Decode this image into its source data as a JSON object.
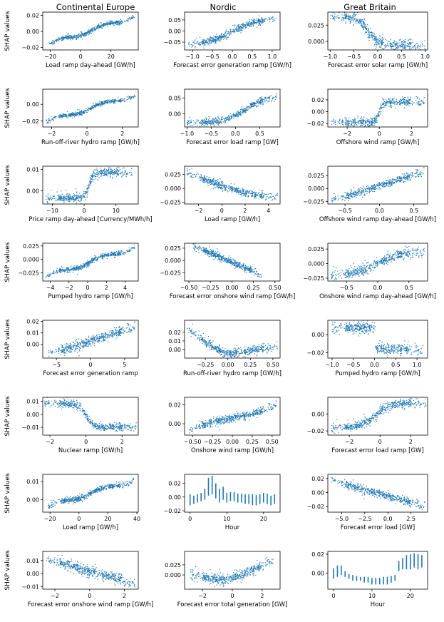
{
  "column_titles": [
    "Continental Europe",
    "Nordic",
    "Great Britain"
  ],
  "y_label": "SHAP values",
  "point_color": "#1f77b4",
  "chart_data": [
    {
      "type": "scatter",
      "row": 0,
      "col": 0,
      "xlabel": "Load ramp day-ahead [GW/h]",
      "xlim": [
        -25,
        38
      ],
      "ylim": [
        -0.023,
        0.024
      ],
      "xticks": [
        -20,
        0,
        20
      ],
      "yticks": [
        -0.02,
        0.0,
        0.02
      ],
      "ytick_labels": [
        "−0.02",
        "0.00",
        "0.02"
      ],
      "trend": {
        "kind": "stairs",
        "x0": -21,
        "x1": 36,
        "y0": -0.016,
        "y1": 0.019
      },
      "noise": 0.0015
    },
    {
      "type": "scatter",
      "row": 0,
      "col": 1,
      "xlabel": "Forecast error generation ramp [GW/h]",
      "xlim": [
        -1.2,
        1.2
      ],
      "ylim": [
        -0.085,
        0.085
      ],
      "xticks": [
        -1.0,
        -0.5,
        0.0,
        0.5,
        1.0
      ],
      "xtick_labels": [
        "−1.0",
        "−0.5",
        "0.0",
        "0.5",
        "1.0"
      ],
      "yticks": [
        -0.05,
        0.0,
        0.05
      ],
      "ytick_labels": [
        "−0.05",
        "0.00",
        "0.05"
      ],
      "trend": {
        "kind": "sigmoid",
        "x0": -1.1,
        "x1": 1.1,
        "y0": -0.065,
        "y1": 0.06,
        "center": 0.0,
        "width": 0.35
      },
      "noise": 0.009
    },
    {
      "type": "scatter",
      "row": 0,
      "col": 2,
      "xlabel": "Forecast error solar ramp [GW/h]",
      "xlim": [
        -1.05,
        1.05
      ],
      "ylim": [
        -0.013,
        0.045
      ],
      "xticks": [
        -1.0,
        -0.5,
        0.0,
        0.5,
        1.0
      ],
      "xtick_labels": [
        "−1.0",
        "−0.5",
        "0.0",
        "0.5",
        "1.0"
      ],
      "yticks": [
        0.0,
        0.025
      ],
      "ytick_labels": [
        "0.000",
        "0.025"
      ],
      "trend": {
        "kind": "sigmoid",
        "x0": -1.0,
        "x1": 1.0,
        "y0": 0.038,
        "y1": -0.007,
        "center": -0.2,
        "width": 0.12
      },
      "noise": 0.005
    },
    {
      "type": "scatter",
      "row": 1,
      "col": 0,
      "xlabel": "Run-off-river hydro ramp [GW/h]",
      "xlim": [
        -2.5,
        2.9
      ],
      "ylim": [
        -0.027,
        0.018
      ],
      "xticks": [
        -2,
        0,
        2
      ],
      "xtick_labels": [
        "−2",
        "0",
        "2"
      ],
      "yticks": [
        -0.02,
        0.0
      ],
      "ytick_labels": [
        "−0.02",
        "0.00"
      ],
      "trend": {
        "kind": "stairs",
        "x0": -2.3,
        "x1": 2.8,
        "y0": -0.021,
        "y1": 0.012
      },
      "noise": 0.0014
    },
    {
      "type": "scatter",
      "row": 1,
      "col": 1,
      "xlabel": "Forecast error load ramp [GW]",
      "xlim": [
        -1.05,
        0.92
      ],
      "ylim": [
        -0.042,
        0.078
      ],
      "xticks": [
        -1.0,
        -0.5,
        0.0,
        0.5
      ],
      "xtick_labels": [
        "−1.0",
        "−0.5",
        "0.0",
        "0.5"
      ],
      "yticks": [
        0.0,
        0.05
      ],
      "ytick_labels": [
        "0.00",
        "0.05"
      ],
      "trend": {
        "kind": "sigmoid",
        "x0": -1.0,
        "x1": 0.85,
        "y0": -0.03,
        "y1": 0.055,
        "center": 0.2,
        "width": 0.22
      },
      "noise": 0.006
    },
    {
      "type": "scatter",
      "row": 1,
      "col": 2,
      "xlabel": "Offshore wind ramp [GW/h]",
      "xlim": [
        -3.2,
        3.0
      ],
      "ylim": [
        -0.026,
        0.038
      ],
      "xticks": [
        -2,
        0,
        2
      ],
      "xtick_labels": [
        "−2",
        "0",
        "2"
      ],
      "yticks": [
        -0.02,
        0.0,
        0.02
      ],
      "ytick_labels": [
        "−0.02",
        "0.00",
        "0.02"
      ],
      "trend": {
        "kind": "sigmoid",
        "x0": -3.0,
        "x1": 2.8,
        "y0": -0.018,
        "y1": 0.016,
        "center": 0.0,
        "width": 0.12
      },
      "noise": 0.004
    },
    {
      "type": "scatter",
      "row": 2,
      "col": 0,
      "xlabel": "Price ramp day-ahead [Currency/MWh/h]",
      "xlim": [
        -13,
        17
      ],
      "ylim": [
        -0.0062,
        0.0115
      ],
      "xticks": [
        -10,
        0,
        10
      ],
      "xtick_labels": [
        "−10",
        "0",
        "10"
      ],
      "yticks": [
        0.0,
        0.01
      ],
      "ytick_labels": [
        "0.00",
        "0.01"
      ],
      "trend": {
        "kind": "sigmoid",
        "x0": -12,
        "x1": 15,
        "y0": -0.0035,
        "y1": 0.0085,
        "center": 1.5,
        "width": 0.7
      },
      "noise": 0.0012
    },
    {
      "type": "scatter",
      "row": 2,
      "col": 1,
      "xlabel": "Load ramp [GW/h]",
      "xlim": [
        -3.2,
        5.0
      ],
      "ylim": [
        -0.028,
        0.04
      ],
      "xticks": [
        -2,
        0,
        2,
        4
      ],
      "xtick_labels": [
        "−2",
        "0",
        "2",
        "4"
      ],
      "yticks": [
        -0.025,
        0.0,
        0.025
      ],
      "ytick_labels": [
        "−0.025",
        "0.000",
        "0.025"
      ],
      "trend": {
        "kind": "decay",
        "x0": -3.0,
        "x1": 4.8,
        "y0": 0.03,
        "y1": -0.018
      },
      "noise": 0.004
    },
    {
      "type": "scatter",
      "row": 2,
      "col": 2,
      "xlabel": "Offshore wind ramp day-ahead [GW/h]",
      "xlim": [
        -0.75,
        0.7
      ],
      "ylim": [
        -0.03,
        0.043
      ],
      "xticks": [
        -0.5,
        0.0,
        0.5
      ],
      "xtick_labels": [
        "−0.5",
        "0.0",
        "0.5"
      ],
      "yticks": [
        -0.025,
        0.0,
        0.025
      ],
      "ytick_labels": [
        "−0.025",
        "0.000",
        "0.025"
      ],
      "trend": {
        "kind": "linear",
        "x0": -0.7,
        "x1": 0.65,
        "y0": -0.024,
        "y1": 0.032
      },
      "noise": 0.004
    },
    {
      "type": "scatter",
      "row": 3,
      "col": 0,
      "xlabel": "Pumped hydro ramp [GW/h]",
      "xlim": [
        -4.8,
        5.4
      ],
      "ylim": [
        -0.04,
        0.03
      ],
      "xticks": [
        -4,
        -2,
        0,
        2,
        4
      ],
      "xtick_labels": [
        "−4",
        "−2",
        "0",
        "2",
        "4"
      ],
      "yticks": [
        -0.025,
        0.0,
        0.025
      ],
      "ytick_labels": [
        "−0.025",
        "0.000",
        "0.025"
      ],
      "trend": {
        "kind": "stairs",
        "x0": -4.5,
        "x1": 5.0,
        "y0": -0.033,
        "y1": 0.023
      },
      "noise": 0.0025
    },
    {
      "type": "scatter",
      "row": 3,
      "col": 1,
      "xlabel": "Forecast error onshore wind ramp [GW/h]",
      "xlim": [
        -0.55,
        0.56
      ],
      "ylim": [
        -0.042,
        0.035
      ],
      "xticks": [
        -0.5,
        -0.25,
        0.0,
        0.25,
        0.5
      ],
      "xtick_labels": [
        "−0.50",
        "−0.25",
        "0.00",
        "0.25",
        "0.50"
      ],
      "yticks": [
        -0.025,
        0.0,
        0.025
      ],
      "ytick_labels": [
        "−0.025",
        "0.000",
        "0.025"
      ],
      "trend": {
        "kind": "linear",
        "x0": -0.45,
        "x1": 0.35,
        "y0": 0.03,
        "y1": -0.03
      },
      "noise": 0.004
    },
    {
      "type": "scatter",
      "row": 3,
      "col": 2,
      "xlabel": "Onshore wind ramp day-ahead [GW/h]",
      "xlim": [
        -0.8,
        0.8
      ],
      "ylim": [
        -0.03,
        0.035
      ],
      "xticks": [
        -0.5,
        0.0,
        0.5
      ],
      "xtick_labels": [
        "−0.5",
        "0.0",
        "0.5"
      ],
      "yticks": [
        -0.025,
        0.0,
        0.025
      ],
      "ytick_labels": [
        "−0.025",
        "0.000",
        "0.025"
      ],
      "trend": {
        "kind": "sigmoid",
        "x0": -0.75,
        "x1": 0.75,
        "y0": -0.022,
        "y1": 0.022,
        "center": 0.0,
        "width": 0.22
      },
      "noise": 0.005
    },
    {
      "type": "scatter",
      "row": 4,
      "col": 0,
      "xlabel": "Forecast error generation ramp",
      "xlim": [
        -7,
        7
      ],
      "ylim": [
        -0.012,
        0.021
      ],
      "xticks": [
        -5,
        0,
        5
      ],
      "xtick_labels": [
        "−5",
        "0",
        "5"
      ],
      "yticks": [
        0.0,
        0.01,
        0.02
      ],
      "ytick_labels": [
        "0.00",
        "0.01",
        "0.02"
      ],
      "trend": {
        "kind": "linear",
        "x0": -6.2,
        "x1": 6.5,
        "y0": -0.0085,
        "y1": 0.015
      },
      "noise": 0.0022
    },
    {
      "type": "scatter",
      "row": 4,
      "col": 1,
      "xlabel": "Run-off-river hydro ramp [GW/h]",
      "xlim": [
        -0.48,
        0.58
      ],
      "ylim": [
        -0.01,
        0.034
      ],
      "xticks": [
        -0.25,
        0.0,
        0.25,
        0.5
      ],
      "xtick_labels": [
        "−0.25",
        "0.00",
        "0.25",
        "0.50"
      ],
      "yticks": [
        0.0,
        0.01,
        0.02
      ],
      "ytick_labels": [
        "0.00",
        "0.01",
        "0.02"
      ],
      "trend": {
        "kind": "vshape",
        "x0": -0.45,
        "x1": 0.55,
        "y0": 0.026,
        "y1": 0.004,
        "xmin": 0.0,
        "ymin": -0.005
      },
      "noise": 0.003
    },
    {
      "type": "scatter",
      "row": 4,
      "col": 2,
      "xlabel": "Pumped hydro ramp [GW/h]",
      "xlim": [
        -1.1,
        1.25
      ],
      "ylim": [
        -0.026,
        0.016
      ],
      "xticks": [
        -1.0,
        -0.5,
        0.0,
        0.5,
        1.0
      ],
      "xtick_labels": [
        "−1.0",
        "−0.5",
        "0.0",
        "0.5",
        "1.0"
      ],
      "yticks": [
        -0.02,
        0.0
      ],
      "ytick_labels": [
        "−0.02",
        "0.00"
      ],
      "trend": {
        "kind": "step",
        "x0": -1.0,
        "x1": 1.15,
        "y0": 0.008,
        "y1": -0.016,
        "center": 0.02
      },
      "noise": 0.0035
    },
    {
      "type": "scatter",
      "row": 5,
      "col": 0,
      "xlabel": "Nuclear ramp [GW/h]",
      "xlim": [
        -2.4,
        2.9
      ],
      "ylim": [
        -0.016,
        0.013
      ],
      "xticks": [
        -2,
        0,
        2
      ],
      "xtick_labels": [
        "−2",
        "0",
        "2"
      ],
      "yticks": [
        -0.01,
        0.0,
        0.01
      ],
      "ytick_labels": [
        "−0.01",
        "0.00",
        "0.01"
      ],
      "trend": {
        "kind": "sigmoid",
        "x0": -2.3,
        "x1": 2.8,
        "y0": 0.008,
        "y1": -0.01,
        "center": 0.0,
        "width": 0.18
      },
      "noise": 0.0016
    },
    {
      "type": "scatter",
      "row": 5,
      "col": 1,
      "xlabel": "Onshore wind ramp [GW/h]",
      "xlim": [
        -0.6,
        0.6
      ],
      "ylim": [
        -0.012,
        0.028
      ],
      "xticks": [
        -0.5,
        -0.25,
        0.0,
        0.25,
        0.5
      ],
      "xtick_labels": [
        "−0.50",
        "−0.25",
        "0.00",
        "0.25",
        "0.50"
      ],
      "yticks": [
        0.0,
        0.02
      ],
      "ytick_labels": [
        "0.00",
        "0.02"
      ],
      "trend": {
        "kind": "cubic",
        "x0": -0.55,
        "x1": 0.55,
        "y0": -0.008,
        "y1": 0.02
      },
      "noise": 0.0022
    },
    {
      "type": "scatter",
      "row": 5,
      "col": 2,
      "xlabel": "Forecast error load ramp [GW]",
      "xlim": [
        -3.4,
        3.1
      ],
      "ylim": [
        -0.025,
        0.02
      ],
      "xticks": [
        -2,
        0,
        2
      ],
      "xtick_labels": [
        "−2",
        "0",
        "2"
      ],
      "yticks": [
        -0.02,
        0.0
      ],
      "ytick_labels": [
        "−0.02",
        "0.00"
      ],
      "trend": {
        "kind": "sigmoid",
        "x0": -3.2,
        "x1": 3.0,
        "y0": -0.016,
        "y1": 0.013,
        "center": -0.3,
        "width": 0.45
      },
      "noise": 0.003
    },
    {
      "type": "scatter",
      "row": 6,
      "col": 0,
      "xlabel": "Load ramp [GW/h]",
      "xlim": [
        -25,
        41
      ],
      "ylim": [
        -0.007,
        0.014
      ],
      "xticks": [
        -20,
        0,
        20,
        40
      ],
      "xtick_labels": [
        "−20",
        "0",
        "20",
        "40"
      ],
      "yticks": [
        0.0,
        0.01
      ],
      "ytick_labels": [
        "0.00",
        "0.01"
      ],
      "trend": {
        "kind": "stairs",
        "x0": -21,
        "x1": 38,
        "y0": -0.004,
        "y1": 0.011
      },
      "noise": 0.0009
    },
    {
      "type": "strips",
      "row": 6,
      "col": 1,
      "xlabel": "Hour",
      "xlim": [
        -1.5,
        24.5
      ],
      "ylim": [
        -0.022,
        0.033
      ],
      "xticks": [
        0,
        10,
        20
      ],
      "xtick_labels": [
        "0",
        "10",
        "20"
      ],
      "yticks": [
        -0.02,
        0.0,
        0.02
      ],
      "ytick_labels": [
        "−0.02",
        "0.00",
        "0.02"
      ],
      "hours": [
        0,
        1,
        2,
        3,
        4,
        5,
        6,
        7,
        8,
        9,
        10,
        11,
        12,
        13,
        14,
        15,
        16,
        17,
        18,
        19,
        20,
        21,
        22,
        23
      ],
      "lows": [
        -0.012,
        -0.01,
        -0.008,
        -0.006,
        -0.004,
        0.002,
        0.004,
        -0.002,
        -0.008,
        -0.004,
        -0.008,
        -0.006,
        -0.006,
        -0.008,
        -0.008,
        -0.01,
        -0.01,
        -0.012,
        -0.012,
        -0.01,
        -0.008,
        -0.01,
        -0.012,
        -0.01
      ],
      "highs": [
        0.004,
        0.002,
        0.004,
        0.006,
        0.012,
        0.028,
        0.031,
        0.02,
        0.012,
        0.015,
        0.006,
        0.007,
        0.007,
        0.005,
        0.005,
        0.004,
        0.004,
        0.004,
        0.003,
        0.004,
        0.006,
        0.005,
        0.002,
        0.004
      ]
    },
    {
      "type": "scatter",
      "row": 6,
      "col": 2,
      "xlabel": "Forecast error load [GW]",
      "xlim": [
        -6.5,
        4.3
      ],
      "ylim": [
        -0.028,
        0.026
      ],
      "xticks": [
        -5.0,
        -2.5,
        0.0,
        2.5
      ],
      "xtick_labels": [
        "−5.0",
        "−2.5",
        "0.0",
        "2.5"
      ],
      "yticks": [
        -0.02,
        0.0,
        0.02
      ],
      "ytick_labels": [
        "−0.02",
        "0.00",
        "0.02"
      ],
      "trend": {
        "kind": "linear",
        "x0": -6.2,
        "x1": 4.0,
        "y0": 0.018,
        "y1": -0.02
      },
      "noise": 0.003
    },
    {
      "type": "scatter",
      "row": 7,
      "col": 0,
      "xlabel": "Forecast error onshore wind ramp [GW/h]",
      "xlim": [
        -2.7,
        2.8
      ],
      "ylim": [
        -0.012,
        0.017
      ],
      "xticks": [
        -2,
        0,
        2
      ],
      "xtick_labels": [
        "−2",
        "0",
        "2"
      ],
      "yticks": [
        -0.01,
        0.0,
        0.01
      ],
      "ytick_labels": [
        "−0.01",
        "0.00",
        "0.01"
      ],
      "trend": {
        "kind": "linear",
        "x0": -2.5,
        "x1": 2.6,
        "y0": 0.011,
        "y1": -0.008
      },
      "noise": 0.0022
    },
    {
      "type": "scatter",
      "row": 7,
      "col": 1,
      "xlabel": "Forecast error total generation [GW]",
      "xlim": [
        -3.2,
        3.2
      ],
      "ylim": [
        -0.035,
        0.058
      ],
      "xticks": [
        -2,
        0,
        2
      ],
      "xtick_labels": [
        "−2",
        "0",
        "2"
      ],
      "yticks": [
        0.0,
        0.025
      ],
      "ytick_labels": [
        "0.000",
        "0.025"
      ],
      "trend": {
        "kind": "vshape",
        "x0": -2.8,
        "x1": 2.8,
        "y0": 0.002,
        "y1": 0.04,
        "xmin": -0.6,
        "ymin": -0.012
      },
      "noise": 0.007
    },
    {
      "type": "strips",
      "row": 7,
      "col": 2,
      "xlabel": "Hour",
      "xlim": [
        -1.5,
        24.5
      ],
      "ylim": [
        -0.017,
        0.023
      ],
      "xticks": [
        0,
        10,
        20
      ],
      "xtick_labels": [
        "0",
        "10",
        "20"
      ],
      "yticks": [
        0.0,
        0.02
      ],
      "ytick_labels": [
        "0.00",
        "0.02"
      ],
      "hours": [
        0,
        1,
        2,
        3,
        4,
        5,
        6,
        7,
        8,
        9,
        10,
        11,
        12,
        13,
        14,
        15,
        16,
        17,
        18,
        19,
        20,
        21,
        22,
        23
      ],
      "lows": [
        -0.006,
        -0.004,
        -0.002,
        -0.004,
        -0.006,
        -0.008,
        -0.008,
        -0.008,
        -0.01,
        -0.01,
        -0.012,
        -0.012,
        -0.012,
        -0.012,
        -0.012,
        -0.01,
        -0.008,
        0.002,
        0.004,
        0.004,
        0.004,
        0.006,
        0.004,
        0.006
      ],
      "highs": [
        0.005,
        0.008,
        0.008,
        0.002,
        -0.001,
        -0.002,
        -0.003,
        -0.004,
        -0.004,
        -0.004,
        -0.005,
        -0.005,
        -0.005,
        -0.004,
        -0.004,
        -0.003,
        -0.002,
        0.013,
        0.016,
        0.019,
        0.02,
        0.021,
        0.02,
        0.019
      ]
    }
  ]
}
